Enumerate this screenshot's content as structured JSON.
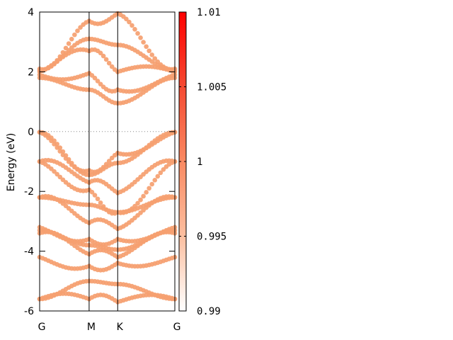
{
  "chart_data": {
    "type": "scatter",
    "title": "",
    "xlabel": "",
    "ylabel": "Energy (eV)",
    "ylim": [
      -6,
      4
    ],
    "yticks": [
      "-6",
      "-4",
      "-2",
      "0",
      "2",
      "4"
    ],
    "xticks": [
      {
        "label": "G",
        "pos": 0
      },
      {
        "label": "M",
        "pos": 1
      },
      {
        "label": "K",
        "pos": 1.5774
      },
      {
        "label": "G",
        "pos": 2.7321
      }
    ],
    "fermi_level": 0,
    "grid": false,
    "marker_color": "#f5a070",
    "colorbar": {
      "range": [
        0.99,
        1.01
      ],
      "ticks": [
        "0.99",
        "0.995",
        "1",
        "1.005",
        "1.01"
      ],
      "colors": [
        "#ffffff",
        "#fcbfa0",
        "#fa8a62",
        "#f54a32",
        "#ff0000"
      ]
    },
    "bands_at_kpoints": [
      {
        "G": -0.02,
        "M": -1.3,
        "K": -0.72,
        "G_end": -0.02
      },
      {
        "G": -0.02,
        "M": -1.45,
        "K": -1.05,
        "G_end": -0.02
      },
      {
        "G": -1.0,
        "M": -1.7,
        "K": -2.05,
        "G_end": -1.0
      },
      {
        "G": -1.0,
        "M": -1.95,
        "K": -2.7,
        "G_end": -1.0
      },
      {
        "G": -2.2,
        "M": -2.45,
        "K": -2.7,
        "G_end": -2.2
      },
      {
        "G": -2.2,
        "M": -3.05,
        "K": -3.25,
        "G_end": -2.2
      },
      {
        "G": -3.2,
        "M": -3.6,
        "K": -3.6,
        "G_end": -3.2
      },
      {
        "G": -3.3,
        "M": -3.8,
        "K": -3.95,
        "G_end": -3.3
      },
      {
        "G": -3.4,
        "M": -4.1,
        "K": -4.2,
        "G_end": -3.4
      },
      {
        "G": -4.2,
        "M": -4.5,
        "K": -4.4,
        "G_end": -4.2
      },
      {
        "G": -5.6,
        "M": -5.0,
        "K": -5.1,
        "G_end": -5.6
      },
      {
        "G": -5.6,
        "M": -5.6,
        "K": -5.7,
        "G_end": -5.6
      },
      {
        "G": 2.1,
        "M": 3.7,
        "K": 3.95,
        "G_end": 2.1
      },
      {
        "G": 2.05,
        "M": 3.1,
        "K": 2.9,
        "G_end": 2.05
      },
      {
        "G": 2.0,
        "M": 2.7,
        "K": 2.0,
        "G_end": 2.0
      },
      {
        "G": 1.9,
        "M": 1.95,
        "K": 1.4,
        "G_end": 1.9
      },
      {
        "G": 1.8,
        "M": 1.4,
        "K": 0.95,
        "G_end": 1.8
      }
    ]
  }
}
